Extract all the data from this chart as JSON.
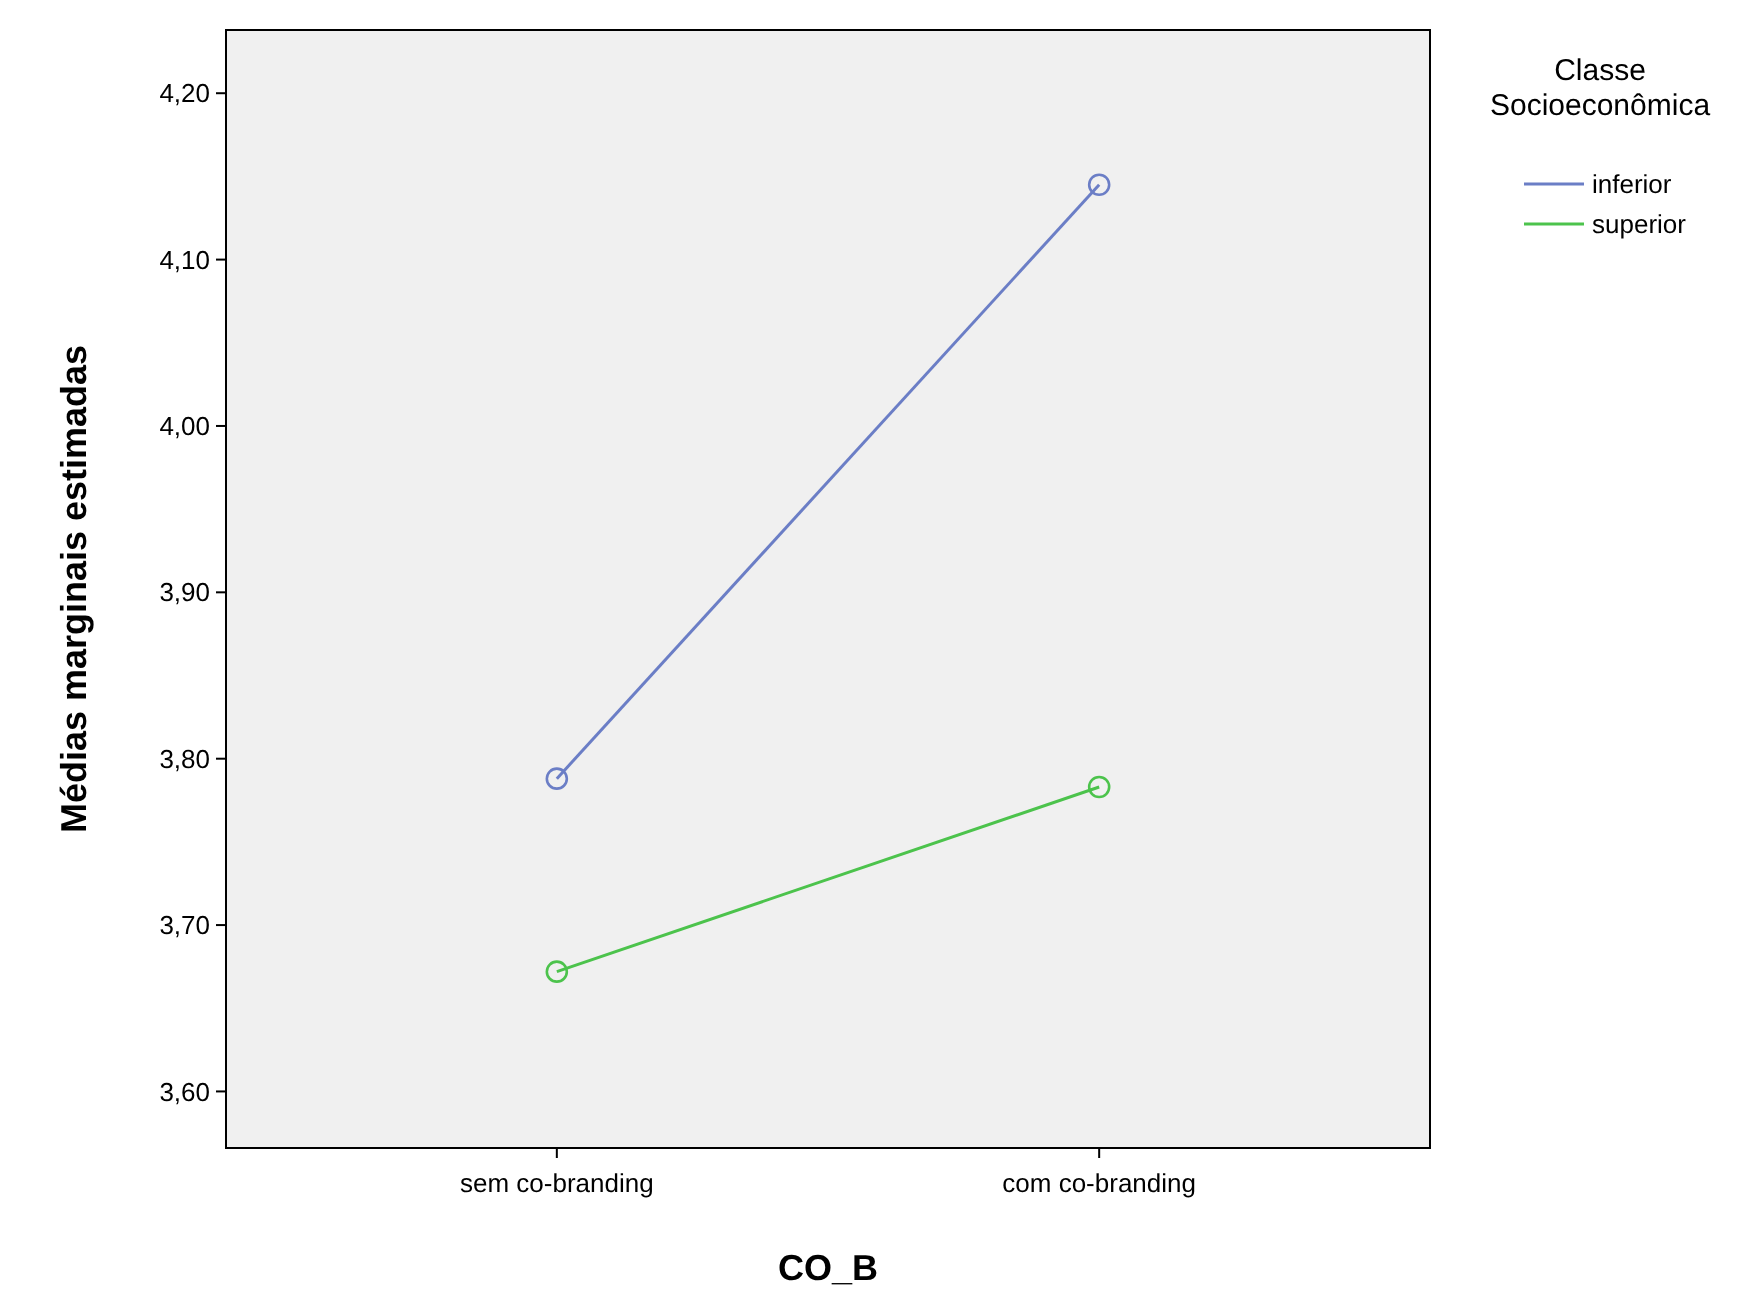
{
  "chart_data": {
    "type": "line",
    "xlabel": "CO_B",
    "ylabel": "Médias marginais estimadas",
    "legend_title": "Classe Socioeconômica",
    "categories": [
      "sem co-branding",
      "com co-branding"
    ],
    "series": [
      {
        "name": "inferior",
        "color": "#6b7ec6",
        "values": [
          3.788,
          4.145
        ]
      },
      {
        "name": "superior",
        "color": "#4cc34c",
        "values": [
          3.672,
          3.783
        ]
      }
    ],
    "ylim": [
      3.566,
      4.238
    ],
    "yticks": [
      {
        "value": 3.6,
        "label": "3,60"
      },
      {
        "value": 3.7,
        "label": "3,70"
      },
      {
        "value": 3.8,
        "label": "3,80"
      },
      {
        "value": 3.9,
        "label": "3,90"
      },
      {
        "value": 4.0,
        "label": "4,00"
      },
      {
        "value": 4.1,
        "label": "4,10"
      },
      {
        "value": 4.2,
        "label": "4,20"
      }
    ],
    "marker": "circle",
    "line_style": "solid",
    "legend": "top right",
    "grid": false
  }
}
